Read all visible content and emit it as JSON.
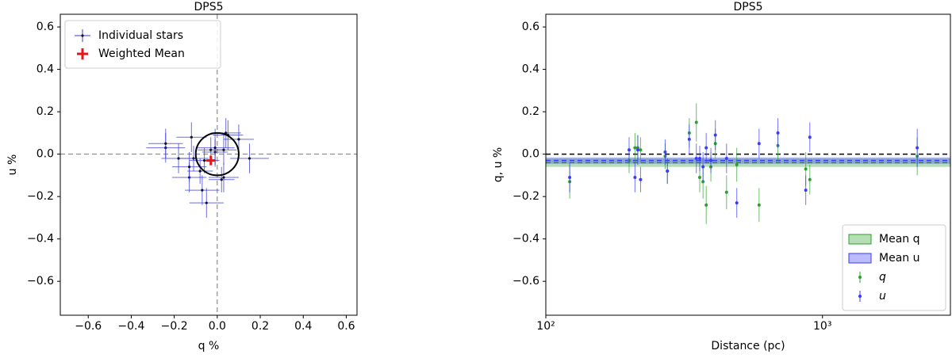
{
  "chart_data": [
    {
      "type": "errorbar-scatter",
      "title": "DPS5",
      "xlabel": "q %",
      "ylabel": "u %",
      "xlim": [
        -0.73,
        0.65
      ],
      "ylim": [
        -0.76,
        0.66
      ],
      "xticks": [
        {
          "value": -0.6,
          "label": "−0.6"
        },
        {
          "value": -0.4,
          "label": "−0.4"
        },
        {
          "value": -0.2,
          "label": "−0.2"
        },
        {
          "value": 0,
          "label": "0.0"
        },
        0.2,
        0.4,
        0.6
      ],
      "yticks": [
        {
          "value": -0.6,
          "label": "−0.6"
        },
        {
          "value": -0.4,
          "label": "−0.4"
        },
        {
          "value": -0.2,
          "label": "−0.2"
        },
        {
          "value": 0,
          "label": "0.0"
        },
        0.2,
        0.4,
        0.6
      ],
      "ref_lines": {
        "x": 0,
        "y": 0
      },
      "circle": {
        "x": 0,
        "y": 0,
        "r": 0.1
      },
      "legend": "upper left",
      "series": [
        {
          "name": "Individual stars",
          "color": "#3b3bd6",
          "x": [
            -0.13,
            -0.03,
            0.03,
            0.03,
            0.02,
            -0.01,
            -0.08,
            0.1,
            0.15,
            -0.11,
            -0.13,
            -0.24,
            -0.06,
            0.05,
            -0.18,
            -0.05,
            -0.24,
            0.04,
            -0.07,
            -0.12,
            -0.01
          ],
          "values": [
            -0.11,
            0.02,
            -0.11,
            0.02,
            -0.12,
            0.01,
            -0.08,
            0.07,
            -0.02,
            -0.02,
            -0.06,
            0.03,
            -0.03,
            0.09,
            -0.02,
            -0.23,
            0.05,
            0.1,
            -0.17,
            0.08,
            0.03
          ],
          "xerr": [
            0.08,
            0.06,
            0.07,
            0.06,
            0.06,
            0.06,
            0.06,
            0.07,
            0.09,
            0.07,
            0.08,
            0.09,
            0.07,
            0.07,
            0.08,
            0.08,
            0.08,
            0.07,
            0.08,
            0.07,
            0.09
          ],
          "yerr": [
            0.07,
            0.06,
            0.07,
            0.07,
            0.06,
            0.06,
            0.06,
            0.07,
            0.07,
            0.06,
            0.07,
            0.07,
            0.06,
            0.07,
            0.07,
            0.07,
            0.07,
            0.07,
            0.07,
            0.07,
            0.09
          ]
        }
      ],
      "mean": {
        "name": "Weighted Mean",
        "color": "#e8141b",
        "x": -0.03,
        "y": -0.03
      }
    },
    {
      "type": "errorbar-log",
      "title": "DPS5",
      "xlabel": "Distance (pc)",
      "ylabel": "q, u %",
      "xlog": true,
      "xlim": [
        100,
        2900
      ],
      "ylim": [
        -0.76,
        0.66
      ],
      "xticks": [
        {
          "value": 100,
          "label": "10²"
        },
        {
          "value": 1000,
          "label": "10³"
        }
      ],
      "yticks": [
        {
          "value": -0.6,
          "label": "−0.6"
        },
        {
          "value": -0.4,
          "label": "−0.4"
        },
        {
          "value": -0.2,
          "label": "−0.2"
        },
        {
          "value": 0,
          "label": "0.0"
        },
        0.2,
        0.4,
        0.6
      ],
      "ref_line": 0,
      "legend": "lower right",
      "bands": [
        {
          "name": "Mean q",
          "color": "#2ca02c",
          "value": -0.04,
          "err": 0.02
        },
        {
          "name": "Mean u",
          "color": "#3b3bff",
          "value": -0.03,
          "err": 0.015
        }
      ],
      "x": [
        122,
        200,
        210,
        215,
        220,
        270,
        275,
        330,
        350,
        360,
        370,
        380,
        395,
        410,
        450,
        490,
        590,
        690,
        870,
        900,
        2200
      ],
      "series": [
        {
          "name": "q",
          "color": "#2ca02c",
          "values": [
            -0.13,
            -0.03,
            0.03,
            0.03,
            0.02,
            -0.01,
            -0.08,
            0.1,
            0.15,
            -0.11,
            -0.13,
            -0.24,
            -0.06,
            0.05,
            -0.18,
            -0.05,
            -0.24,
            0.04,
            -0.07,
            -0.12,
            -0.01
          ],
          "yerr": [
            0.08,
            0.06,
            0.07,
            0.06,
            0.06,
            0.06,
            0.06,
            0.07,
            0.09,
            0.07,
            0.08,
            0.09,
            0.07,
            0.07,
            0.08,
            0.08,
            0.08,
            0.07,
            0.08,
            0.07,
            0.09
          ]
        },
        {
          "name": "u",
          "color": "#3b3bff",
          "values": [
            -0.11,
            0.02,
            -0.11,
            0.02,
            -0.12,
            0.01,
            -0.08,
            0.07,
            -0.02,
            -0.02,
            -0.06,
            0.03,
            -0.03,
            0.09,
            -0.02,
            -0.23,
            0.05,
            0.1,
            -0.17,
            0.08,
            0.03
          ],
          "yerr": [
            0.07,
            0.06,
            0.07,
            0.07,
            0.06,
            0.06,
            0.06,
            0.07,
            0.07,
            0.06,
            0.07,
            0.07,
            0.06,
            0.07,
            0.07,
            0.07,
            0.07,
            0.07,
            0.07,
            0.07,
            0.09
          ]
        }
      ]
    }
  ]
}
